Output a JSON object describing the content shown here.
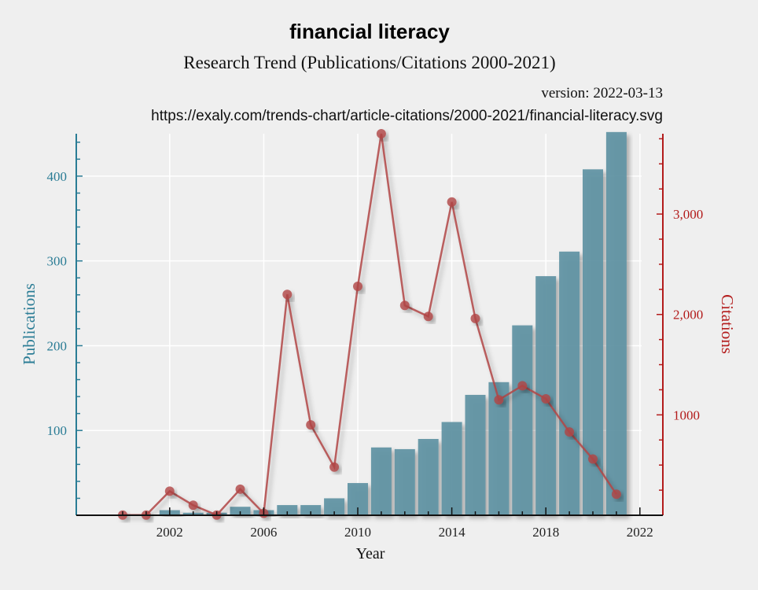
{
  "chart_data": {
    "type": "bar",
    "title": "financial literacy",
    "subtitle": "Research Trend (Publications/Citations 2000-2021)",
    "version": "version: 2022-03-13",
    "url": "https://exaly.com/trends-chart/article-citations/2000-2021/financial-literacy.svg",
    "xlabel": "Year",
    "ylabel_left": "Publications",
    "ylabel_right": "Citations",
    "x": [
      2000,
      2001,
      2002,
      2003,
      2004,
      2005,
      2006,
      2007,
      2008,
      2009,
      2010,
      2011,
      2012,
      2013,
      2014,
      2015,
      2016,
      2017,
      2018,
      2019,
      2020,
      2021
    ],
    "xlim": [
      1999,
      2023
    ],
    "x_ticks": [
      {
        "value": 2002,
        "label": "2002"
      },
      {
        "value": 2006,
        "label": "2006"
      },
      {
        "value": 2010,
        "label": "2010"
      },
      {
        "value": 2014,
        "label": "2014"
      },
      {
        "value": 2018,
        "label": "2018"
      },
      {
        "value": 2022,
        "label": "2022"
      }
    ],
    "ylim_left": [
      0,
      450
    ],
    "y_ticks_left": [
      {
        "value": 100,
        "label": "100"
      },
      {
        "value": 200,
        "label": "200"
      },
      {
        "value": 300,
        "label": "300"
      },
      {
        "value": 400,
        "label": "400"
      }
    ],
    "ylim_right": [
      0,
      3800
    ],
    "y_ticks_right": [
      {
        "value": 1000,
        "label": "1000"
      },
      {
        "value": 2000,
        "label": "2,000"
      },
      {
        "value": 3000,
        "label": "3,000"
      }
    ],
    "grid": true,
    "series": [
      {
        "name": "Publications",
        "type": "bar",
        "axis": "left",
        "color": "#5e93a3",
        "values": [
          0,
          0,
          6,
          3,
          3,
          10,
          6,
          12,
          12,
          20,
          38,
          80,
          78,
          90,
          110,
          142,
          157,
          224,
          282,
          311,
          408,
          452
        ]
      },
      {
        "name": "Citations",
        "type": "line",
        "axis": "right",
        "color": "#b04545",
        "values": [
          2,
          2,
          240,
          100,
          2,
          260,
          20,
          2200,
          900,
          480,
          2280,
          3800,
          2090,
          1980,
          3120,
          1960,
          1150,
          1290,
          1160,
          830,
          560,
          210
        ]
      }
    ]
  }
}
